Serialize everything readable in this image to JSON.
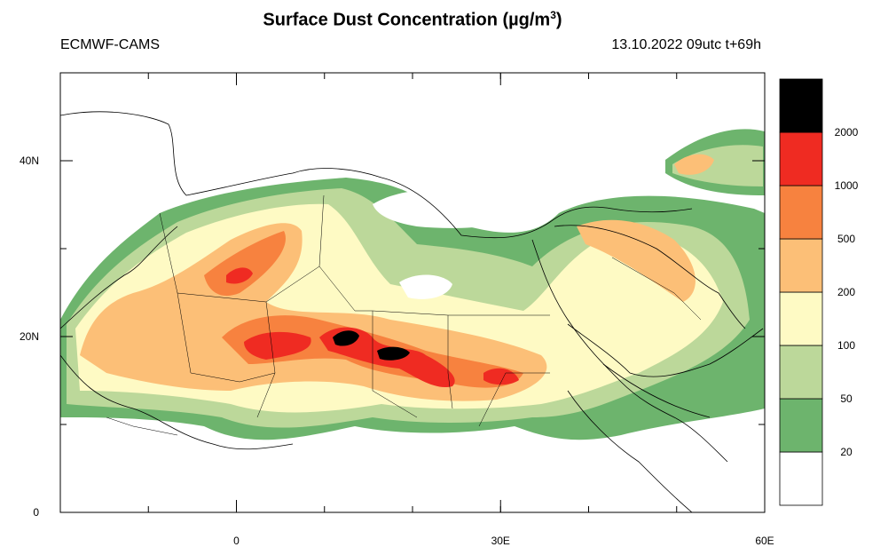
{
  "title": {
    "main": "Surface Dust Concentration (",
    "unit_mu": "µg/m",
    "unit_sup": "3",
    "close": ")"
  },
  "left_label": "ECMWF-CAMS",
  "right_label": "13.10.2022 09utc t+69h",
  "axes": {
    "x_ticks": [
      {
        "value": 0,
        "label": "0"
      },
      {
        "value": 30,
        "label": "30E"
      },
      {
        "value": 60,
        "label": "60E"
      }
    ],
    "y_ticks": [
      {
        "value": 0,
        "label": "0"
      },
      {
        "value": 20,
        "label": "20N"
      },
      {
        "value": 40,
        "label": "40N"
      }
    ],
    "lon_range": [
      -20,
      60
    ],
    "lat_range": [
      0,
      50
    ]
  },
  "legend": {
    "levels": [
      "20",
      "50",
      "100",
      "200",
      "500",
      "1000",
      "2000"
    ],
    "colors": [
      "#ffffff",
      "#6db46d",
      "#bcd89a",
      "#fefac4",
      "#fcbf77",
      "#f7823f",
      "#ef2b22",
      "#000000"
    ]
  }
}
